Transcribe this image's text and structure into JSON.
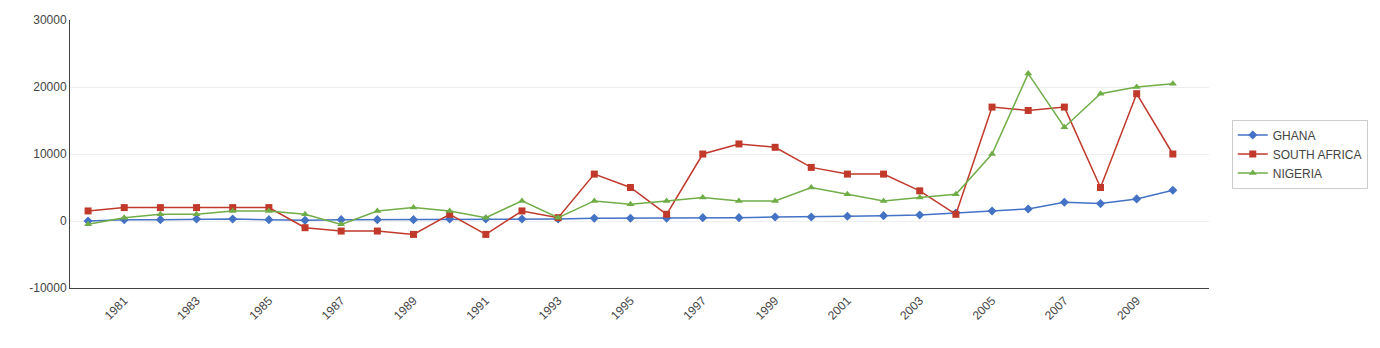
{
  "chart_data": {
    "type": "line",
    "x": [
      1980,
      1981,
      1982,
      1983,
      1984,
      1985,
      1986,
      1987,
      1988,
      1989,
      1990,
      1991,
      1992,
      1993,
      1994,
      1995,
      1996,
      1997,
      1998,
      1999,
      2000,
      2001,
      2002,
      2003,
      2004,
      2005,
      2006,
      2007,
      2008,
      2009,
      2010
    ],
    "series": [
      {
        "name": "GHANA",
        "color": "#4472C4",
        "marker": "diamond",
        "values": [
          0,
          200,
          200,
          300,
          300,
          200,
          100,
          200,
          200,
          200,
          300,
          300,
          300,
          300,
          400,
          400,
          400,
          500,
          500,
          600,
          600,
          700,
          800,
          900,
          1200,
          1500,
          1800,
          2800,
          2600,
          3300,
          4600
        ]
      },
      {
        "name": "SOUTH AFRICA",
        "color": "#C0392B",
        "marker": "square",
        "values": [
          1500,
          2000,
          2000,
          2000,
          2000,
          2000,
          -1000,
          -1500,
          -1500,
          -2000,
          1000,
          -2000,
          1500,
          500,
          7000,
          5000,
          1000,
          10000,
          11500,
          11000,
          8000,
          7000,
          7000,
          4500,
          1000,
          17000,
          16500,
          17000,
          5000,
          19000,
          10000
        ]
      },
      {
        "name": "NIGERIA",
        "color": "#70AD47",
        "marker": "triangle",
        "values": [
          -500,
          500,
          1000,
          1000,
          1500,
          1500,
          1000,
          -500,
          1500,
          2000,
          1500,
          500,
          3000,
          500,
          3000,
          2500,
          3000,
          3500,
          3000,
          3000,
          5000,
          4000,
          3000,
          3500,
          4000,
          10000,
          22000,
          14000,
          19000,
          20000,
          20500
        ]
      }
    ],
    "xlim": [
      1979.5,
      2011.0
    ],
    "xticks": [
      1981,
      1983,
      1985,
      1987,
      1989,
      1991,
      1993,
      1995,
      1997,
      1999,
      2001,
      2003,
      2005,
      2007,
      2009
    ],
    "ylim": [
      -10000,
      30000
    ],
    "yticks": [
      -10000,
      0,
      10000,
      20000,
      30000
    ],
    "grid": "y",
    "legend": "right"
  }
}
